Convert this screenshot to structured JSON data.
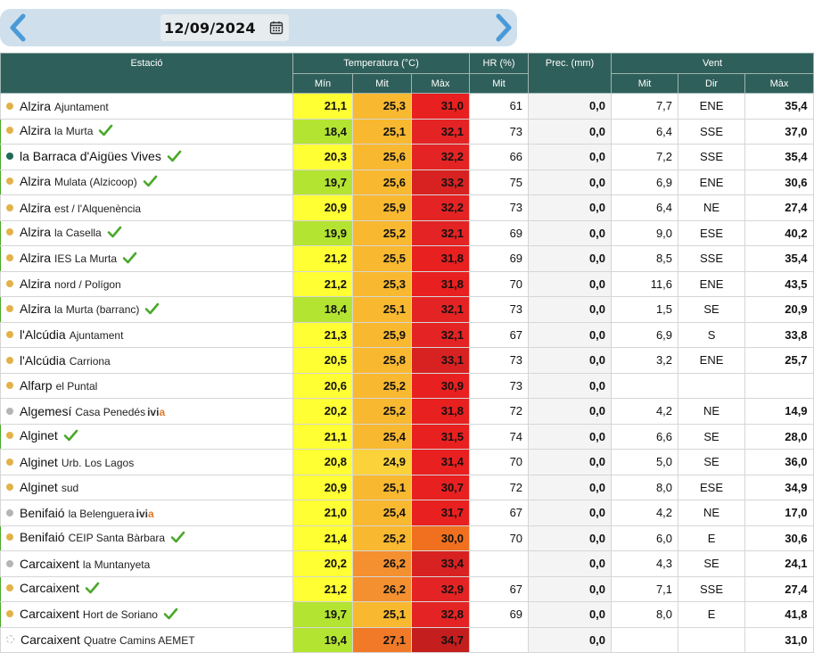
{
  "date": "12/09/2024",
  "icons": {
    "prev": "chevron-left-icon",
    "next": "chevron-right-icon",
    "calendar": "calendar-icon",
    "check": "checkmark-icon"
  },
  "colors": {
    "accent": "#4a9ad8",
    "header_bg": "#2f5f5a",
    "check": "#4aa82a"
  },
  "headers": {
    "station": "Estació",
    "temperature": "Temperatura (°C)",
    "humidity": "HR (%)",
    "precipitation": "Prec. (mm)",
    "wind": "Vent",
    "min": "Mín",
    "mit": "Mit",
    "max": "Màx",
    "hr_mit": "Mit",
    "wind_mit": "Mit",
    "wind_dir": "Dir",
    "wind_max": "Màx"
  },
  "rows": [
    {
      "name": "Alzira",
      "sub": "Ajuntament",
      "dot": "#e2b24a",
      "check": false,
      "ivia": false,
      "hl": false,
      "tmin": "21,1",
      "tmit": "25,3",
      "tmax": "31,0",
      "hr": "61",
      "prec": "0,0",
      "wmit": "7,7",
      "wdir": "ENE",
      "wmax": "35,4",
      "cmin": "#ffff33",
      "cmit": "#f8b830",
      "cmax": "#e82020"
    },
    {
      "name": "Alzira",
      "sub": "la Murta",
      "dot": "#e2b24a",
      "check": true,
      "ivia": false,
      "hl": true,
      "tmin": "18,4",
      "tmit": "25,1",
      "tmax": "32,1",
      "hr": "73",
      "prec": "0,0",
      "wmit": "6,4",
      "wdir": "SSE",
      "wmax": "37,0",
      "cmin": "#b4e432",
      "cmit": "#f8b830",
      "cmax": "#e42424"
    },
    {
      "name": "la Barraca d'Aigües Vives",
      "sub": "",
      "dot": "#1e6a55",
      "check": true,
      "ivia": false,
      "hl": true,
      "tmin": "20,3",
      "tmit": "25,6",
      "tmax": "32,2",
      "hr": "66",
      "prec": "0,0",
      "wmit": "7,2",
      "wdir": "SSE",
      "wmax": "35,4",
      "cmin": "#ffff33",
      "cmit": "#f8b830",
      "cmax": "#e42424"
    },
    {
      "name": "Alzira",
      "sub": "Mulata (Alzicoop)",
      "dot": "#e2b24a",
      "check": true,
      "ivia": false,
      "hl": true,
      "tmin": "19,7",
      "tmit": "25,6",
      "tmax": "33,2",
      "hr": "75",
      "prec": "0,0",
      "wmit": "6,9",
      "wdir": "ENE",
      "wmax": "30,6",
      "cmin": "#b4e432",
      "cmit": "#f8b830",
      "cmax": "#d82222"
    },
    {
      "name": "Alzira",
      "sub": "est / l'Alquenència",
      "dot": "#e2b24a",
      "check": false,
      "ivia": false,
      "hl": false,
      "tmin": "20,9",
      "tmit": "25,9",
      "tmax": "32,2",
      "hr": "73",
      "prec": "0,0",
      "wmit": "6,4",
      "wdir": "NE",
      "wmax": "27,4",
      "cmin": "#ffff33",
      "cmit": "#f8b830",
      "cmax": "#e42424"
    },
    {
      "name": "Alzira",
      "sub": "la Casella",
      "dot": "#e2b24a",
      "check": true,
      "ivia": false,
      "hl": true,
      "tmin": "19,9",
      "tmit": "25,2",
      "tmax": "32,1",
      "hr": "69",
      "prec": "0,0",
      "wmit": "9,0",
      "wdir": "ESE",
      "wmax": "40,2",
      "cmin": "#b4e432",
      "cmit": "#f8b830",
      "cmax": "#e42424"
    },
    {
      "name": "Alzira",
      "sub": "IES La Murta",
      "dot": "#e2b24a",
      "check": true,
      "ivia": false,
      "hl": true,
      "tmin": "21,2",
      "tmit": "25,5",
      "tmax": "31,8",
      "hr": "69",
      "prec": "0,0",
      "wmit": "8,5",
      "wdir": "SSE",
      "wmax": "35,4",
      "cmin": "#ffff33",
      "cmit": "#f8b830",
      "cmax": "#e82020"
    },
    {
      "name": "Alzira",
      "sub": "nord / Polígon",
      "dot": "#e2b24a",
      "check": false,
      "ivia": false,
      "hl": false,
      "tmin": "21,2",
      "tmit": "25,3",
      "tmax": "31,8",
      "hr": "70",
      "prec": "0,0",
      "wmit": "11,6",
      "wdir": "ENE",
      "wmax": "43,5",
      "cmin": "#ffff33",
      "cmit": "#f8b830",
      "cmax": "#e82020"
    },
    {
      "name": "Alzira",
      "sub": "la Murta (barranc)",
      "dot": "#e2b24a",
      "check": true,
      "ivia": false,
      "hl": true,
      "tmin": "18,4",
      "tmit": "25,1",
      "tmax": "32,1",
      "hr": "73",
      "prec": "0,0",
      "wmit": "1,5",
      "wdir": "SE",
      "wmax": "20,9",
      "cmin": "#b4e432",
      "cmit": "#f8b830",
      "cmax": "#e42424"
    },
    {
      "name": "l'Alcúdia",
      "sub": "Ajuntament",
      "dot": "#e2b24a",
      "check": false,
      "ivia": false,
      "hl": false,
      "tmin": "21,3",
      "tmit": "25,9",
      "tmax": "32,1",
      "hr": "67",
      "prec": "0,0",
      "wmit": "6,9",
      "wdir": "S",
      "wmax": "33,8",
      "cmin": "#ffff33",
      "cmit": "#f8b830",
      "cmax": "#e42424"
    },
    {
      "name": "l'Alcúdia",
      "sub": "Carriona",
      "dot": "#e2b24a",
      "check": false,
      "ivia": false,
      "hl": false,
      "tmin": "20,5",
      "tmit": "25,8",
      "tmax": "33,1",
      "hr": "73",
      "prec": "0,0",
      "wmit": "3,2",
      "wdir": "ENE",
      "wmax": "25,7",
      "cmin": "#ffff33",
      "cmit": "#f8b830",
      "cmax": "#d82222"
    },
    {
      "name": "Alfarp",
      "sub": "el Puntal",
      "dot": "#e2b24a",
      "check": false,
      "ivia": false,
      "hl": false,
      "tmin": "20,6",
      "tmit": "25,2",
      "tmax": "30,9",
      "hr": "73",
      "prec": "0,0",
      "wmit": "",
      "wdir": "",
      "wmax": "",
      "cmin": "#ffff33",
      "cmit": "#f8b830",
      "cmax": "#e82020"
    },
    {
      "name": "Algemesí",
      "sub": "Casa Penedés",
      "dot": "#b5b5b5",
      "check": false,
      "ivia": true,
      "hl": false,
      "tmin": "20,2",
      "tmit": "25,2",
      "tmax": "31,8",
      "hr": "72",
      "prec": "0,0",
      "wmit": "4,2",
      "wdir": "NE",
      "wmax": "14,9",
      "cmin": "#ffff33",
      "cmit": "#f8b830",
      "cmax": "#e82020"
    },
    {
      "name": "Alginet",
      "sub": "",
      "dot": "#e2b24a",
      "check": true,
      "ivia": false,
      "hl": true,
      "tmin": "21,1",
      "tmit": "25,4",
      "tmax": "31,5",
      "hr": "74",
      "prec": "0,0",
      "wmit": "6,6",
      "wdir": "SE",
      "wmax": "28,0",
      "cmin": "#ffff33",
      "cmit": "#f8b830",
      "cmax": "#e82020"
    },
    {
      "name": "Alginet",
      "sub": "Urb. Los Lagos",
      "dot": "#e2b24a",
      "check": false,
      "ivia": false,
      "hl": false,
      "tmin": "20,8",
      "tmit": "24,9",
      "tmax": "31,4",
      "hr": "70",
      "prec": "0,0",
      "wmit": "5,0",
      "wdir": "SE",
      "wmax": "36,0",
      "cmin": "#ffff33",
      "cmit": "#fbd23a",
      "cmax": "#e82020"
    },
    {
      "name": "Alginet",
      "sub": "sud",
      "dot": "#e2b24a",
      "check": false,
      "ivia": false,
      "hl": false,
      "tmin": "20,9",
      "tmit": "25,1",
      "tmax": "30,7",
      "hr": "72",
      "prec": "0,0",
      "wmit": "8,0",
      "wdir": "ESE",
      "wmax": "34,9",
      "cmin": "#ffff33",
      "cmit": "#f8b830",
      "cmax": "#e82020"
    },
    {
      "name": "Benifaió",
      "sub": "la Belenguera",
      "dot": "#b5b5b5",
      "check": false,
      "ivia": true,
      "hl": false,
      "tmin": "21,0",
      "tmit": "25,4",
      "tmax": "31,7",
      "hr": "67",
      "prec": "0,0",
      "wmit": "4,2",
      "wdir": "NE",
      "wmax": "17,0",
      "cmin": "#ffff33",
      "cmit": "#f8b830",
      "cmax": "#e82020"
    },
    {
      "name": "Benifaió",
      "sub": "CEIP Santa Bàrbara",
      "dot": "#e2b24a",
      "check": true,
      "ivia": false,
      "hl": true,
      "tmin": "21,4",
      "tmit": "25,2",
      "tmax": "30,0",
      "hr": "70",
      "prec": "0,0",
      "wmit": "6,0",
      "wdir": "E",
      "wmax": "30,6",
      "cmin": "#ffff33",
      "cmit": "#f8b830",
      "cmax": "#f07020"
    },
    {
      "name": "Carcaixent",
      "sub": "la Muntanyeta",
      "dot": "#b5b5b5",
      "check": false,
      "ivia": false,
      "hl": false,
      "tmin": "20,2",
      "tmit": "26,2",
      "tmax": "33,4",
      "hr": "",
      "prec": "0,0",
      "wmit": "4,3",
      "wdir": "SE",
      "wmax": "24,1",
      "cmin": "#ffff33",
      "cmit": "#f49030",
      "cmax": "#d82222"
    },
    {
      "name": "Carcaixent",
      "sub": "",
      "dot": "#e2b24a",
      "check": true,
      "ivia": false,
      "hl": true,
      "tmin": "21,2",
      "tmit": "26,2",
      "tmax": "32,9",
      "hr": "67",
      "prec": "0,0",
      "wmit": "7,1",
      "wdir": "SSE",
      "wmax": "27,4",
      "cmin": "#ffff33",
      "cmit": "#f49030",
      "cmax": "#e42424"
    },
    {
      "name": "Carcaixent",
      "sub": "Hort de Soriano",
      "dot": "#e2b24a",
      "check": true,
      "ivia": false,
      "hl": true,
      "tmin": "19,7",
      "tmit": "25,1",
      "tmax": "32,8",
      "hr": "69",
      "prec": "0,0",
      "wmit": "8,0",
      "wdir": "E",
      "wmax": "41,8",
      "cmin": "#b4e432",
      "cmit": "#f8b830",
      "cmax": "#e42424"
    },
    {
      "name": "Carcaixent",
      "sub": "Quatre Camins AEMET",
      "dot": "empty",
      "check": false,
      "ivia": false,
      "hl": false,
      "tmin": "19,4",
      "tmit": "27,1",
      "tmax": "34,7",
      "hr": "",
      "prec": "0,0",
      "wmit": "",
      "wdir": "",
      "wmax": "31,0",
      "cmin": "#b4e432",
      "cmit": "#f07a28",
      "cmax": "#c41e1e"
    }
  ]
}
